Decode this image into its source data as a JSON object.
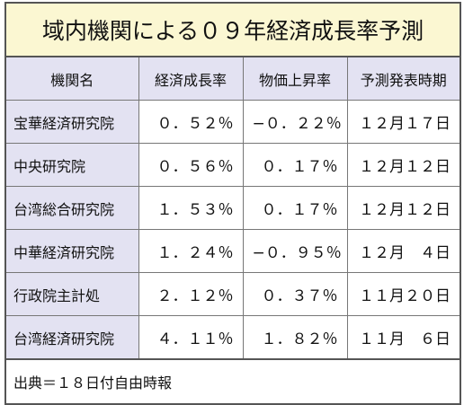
{
  "title": "域内機関による０９年経済成長率予測",
  "table": {
    "header": [
      "機関名",
      "経済成長率",
      "物価上昇率",
      "予測発表時期"
    ],
    "rows": [
      [
        "宝華経済研究院",
        "０．５２％",
        "−０．２２％",
        "１２月１７日"
      ],
      [
        "中央研究院",
        "０．５６％",
        "０．１７％",
        "１２月１２日"
      ],
      [
        "台湾総合研究院",
        "１．５３％",
        "０．１７％",
        "１２月１２日"
      ],
      [
        "中華経済研究院",
        "１．２４％",
        "−０．９５％",
        "１２月　４日"
      ],
      [
        "行政院主計処",
        "２．１２％",
        "０．３７％",
        "１１月２０日"
      ],
      [
        "台湾経済研究院",
        "４．１１％",
        "１．８２％",
        "１１月　６日"
      ]
    ]
  },
  "footer": "出典＝１８日付自由時報"
}
